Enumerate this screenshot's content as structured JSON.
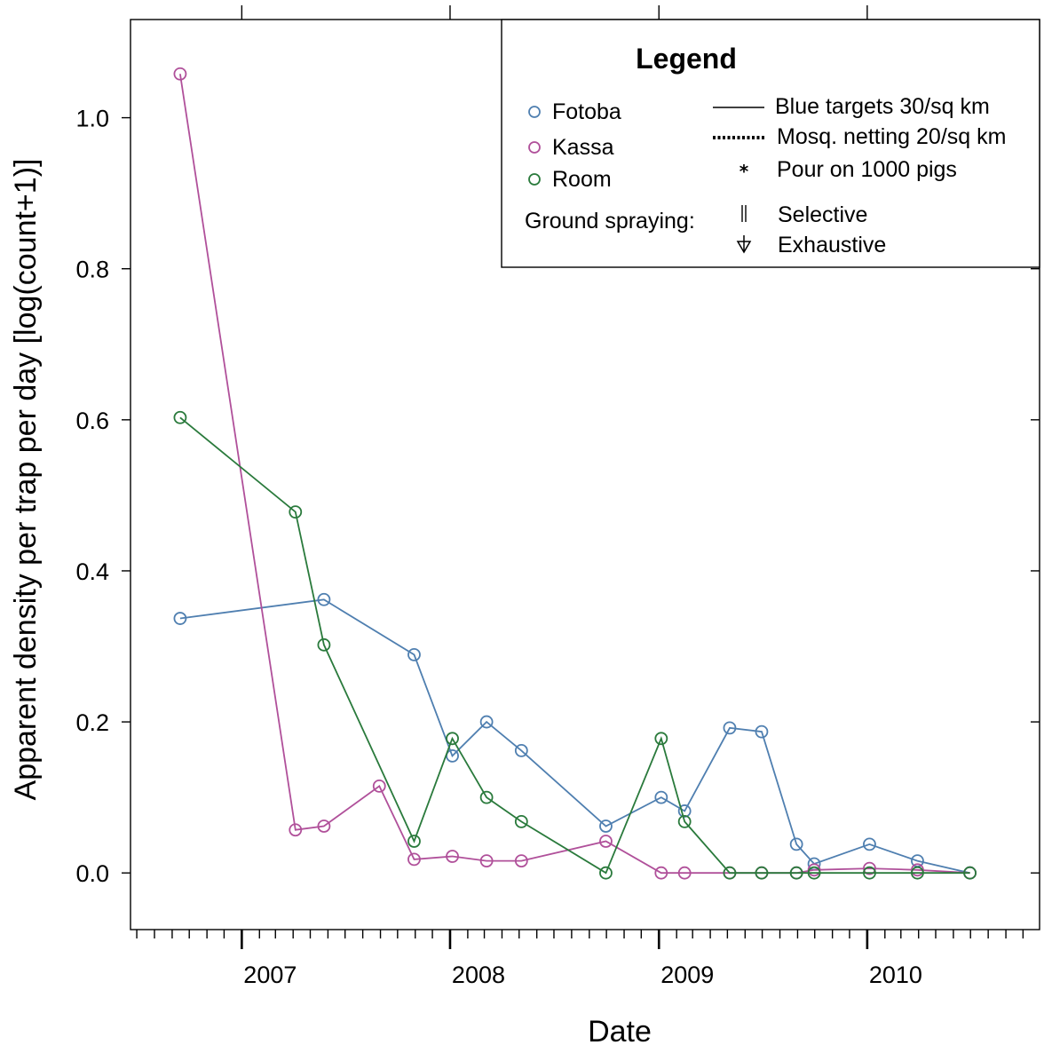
{
  "chart_data": {
    "type": "line",
    "xlabel": "Date",
    "ylabel": "Apparent density per trap per day [log(count+1)]",
    "xlim": [
      "2006-06-20",
      "2010-10-30"
    ],
    "ylim": [
      -0.075,
      1.13
    ],
    "x_ticks": [
      {
        "date": "2007-01-01",
        "label": "2007"
      },
      {
        "date": "2008-01-01",
        "label": "2008"
      },
      {
        "date": "2009-01-01",
        "label": "2009"
      },
      {
        "date": "2010-01-01",
        "label": "2010"
      }
    ],
    "y_ticks": [
      {
        "value": 0.0,
        "label": "0.0"
      },
      {
        "value": 0.2,
        "label": "0.2"
      },
      {
        "value": 0.4,
        "label": "0.4"
      },
      {
        "value": 0.6,
        "label": "0.6"
      },
      {
        "value": 0.8,
        "label": "0.8"
      },
      {
        "value": 1.0,
        "label": "1.0"
      }
    ],
    "grid": false,
    "legend_position": "top-right",
    "series": [
      {
        "name": "Fotoba",
        "color": "#4f7fb0",
        "points": [
          {
            "x": "2006-09-15",
            "y": 0.337
          },
          {
            "x": "2007-05-25",
            "y": 0.362
          },
          {
            "x": "2007-10-30",
            "y": 0.289
          },
          {
            "x": "2008-01-05",
            "y": 0.155
          },
          {
            "x": "2008-03-05",
            "y": 0.2
          },
          {
            "x": "2008-05-05",
            "y": 0.162
          },
          {
            "x": "2008-09-30",
            "y": 0.062
          },
          {
            "x": "2009-01-05",
            "y": 0.1
          },
          {
            "x": "2009-02-15",
            "y": 0.082
          },
          {
            "x": "2009-05-05",
            "y": 0.192
          },
          {
            "x": "2009-06-30",
            "y": 0.187
          },
          {
            "x": "2009-08-30",
            "y": 0.038
          },
          {
            "x": "2009-09-30",
            "y": 0.012
          },
          {
            "x": "2010-01-05",
            "y": 0.038
          },
          {
            "x": "2010-03-30",
            "y": 0.016
          },
          {
            "x": "2010-06-30",
            "y": 0.0
          }
        ]
      },
      {
        "name": "Kassa",
        "color": "#b0509a",
        "points": [
          {
            "x": "2006-09-15",
            "y": 1.058
          },
          {
            "x": "2007-04-05",
            "y": 0.057
          },
          {
            "x": "2007-05-25",
            "y": 0.062
          },
          {
            "x": "2007-08-30",
            "y": 0.115
          },
          {
            "x": "2007-10-30",
            "y": 0.018
          },
          {
            "x": "2008-01-05",
            "y": 0.022
          },
          {
            "x": "2008-03-05",
            "y": 0.016
          },
          {
            "x": "2008-05-05",
            "y": 0.016
          },
          {
            "x": "2008-09-30",
            "y": 0.042
          },
          {
            "x": "2009-01-05",
            "y": 0.0
          },
          {
            "x": "2009-02-15",
            "y": 0.0
          },
          {
            "x": "2009-05-05",
            "y": 0.0
          },
          {
            "x": "2009-06-30",
            "y": 0.0
          },
          {
            "x": "2009-08-30",
            "y": 0.0
          },
          {
            "x": "2009-09-30",
            "y": 0.004
          },
          {
            "x": "2010-01-05",
            "y": 0.006
          },
          {
            "x": "2010-03-30",
            "y": 0.004
          },
          {
            "x": "2010-06-30",
            "y": 0.0
          }
        ]
      },
      {
        "name": "Room",
        "color": "#2a7a3c",
        "points": [
          {
            "x": "2006-09-15",
            "y": 0.603
          },
          {
            "x": "2007-04-05",
            "y": 0.478
          },
          {
            "x": "2007-05-25",
            "y": 0.302
          },
          {
            "x": "2007-10-30",
            "y": 0.042
          },
          {
            "x": "2008-01-05",
            "y": 0.178
          },
          {
            "x": "2008-03-05",
            "y": 0.1
          },
          {
            "x": "2008-05-05",
            "y": 0.068
          },
          {
            "x": "2008-09-30",
            "y": 0.0
          },
          {
            "x": "2009-01-05",
            "y": 0.178
          },
          {
            "x": "2009-02-15",
            "y": 0.068
          },
          {
            "x": "2009-05-05",
            "y": 0.0
          },
          {
            "x": "2009-06-30",
            "y": 0.0
          },
          {
            "x": "2009-08-30",
            "y": 0.0
          },
          {
            "x": "2009-09-30",
            "y": 0.0
          },
          {
            "x": "2010-01-05",
            "y": 0.0
          },
          {
            "x": "2010-03-30",
            "y": 0.0
          },
          {
            "x": "2010-06-30",
            "y": 0.0
          }
        ]
      }
    ],
    "legend": {
      "title": "Legend",
      "sites": [
        {
          "label": "Fotoba",
          "color": "#4f7fb0"
        },
        {
          "label": "Kassa",
          "color": "#b0509a"
        },
        {
          "label": "Room",
          "color": "#2a7a3c"
        }
      ],
      "interventions": [
        {
          "symbol": "solid-line",
          "label": "Blue targets 30/sq km"
        },
        {
          "symbol": "dotted-line",
          "label": "Mosq. netting 20/sq km"
        },
        {
          "symbol": "asterisk",
          "label": "Pour on 1000 pigs"
        }
      ],
      "spraying_label": "Ground spraying:",
      "spraying": [
        {
          "symbol": "double-bar",
          "label": "Selective"
        },
        {
          "symbol": "down-arrow",
          "label": "Exhaustive"
        }
      ]
    }
  }
}
